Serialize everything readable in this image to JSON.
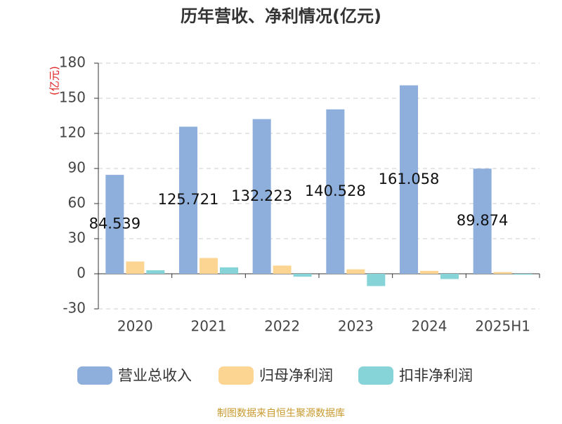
{
  "chart_data": {
    "type": "bar",
    "title": "历年营收、净利情况(亿元)",
    "y_label": "(亿元)",
    "categories": [
      "2020",
      "2021",
      "2022",
      "2023",
      "2024",
      "2025H1"
    ],
    "series": [
      {
        "name": "营业总收入",
        "color": "#8eaedc",
        "values": [
          84.539,
          125.721,
          132.223,
          140.528,
          161.058,
          89.874
        ]
      },
      {
        "name": "归母净利润",
        "color": "#fdd593",
        "values": [
          10.5,
          13.5,
          7,
          3.8,
          2.5,
          1.5
        ]
      },
      {
        "name": "扣非净利润",
        "color": "#86d4d8",
        "values": [
          3,
          5.5,
          -2.5,
          -10.5,
          -4.5,
          -0.8
        ]
      }
    ],
    "ylim": [
      -30,
      180
    ],
    "yticks": [
      -30,
      0,
      30,
      60,
      90,
      120,
      150,
      180
    ],
    "grid": true,
    "source": "制图数据来自恒生聚源数据库"
  }
}
